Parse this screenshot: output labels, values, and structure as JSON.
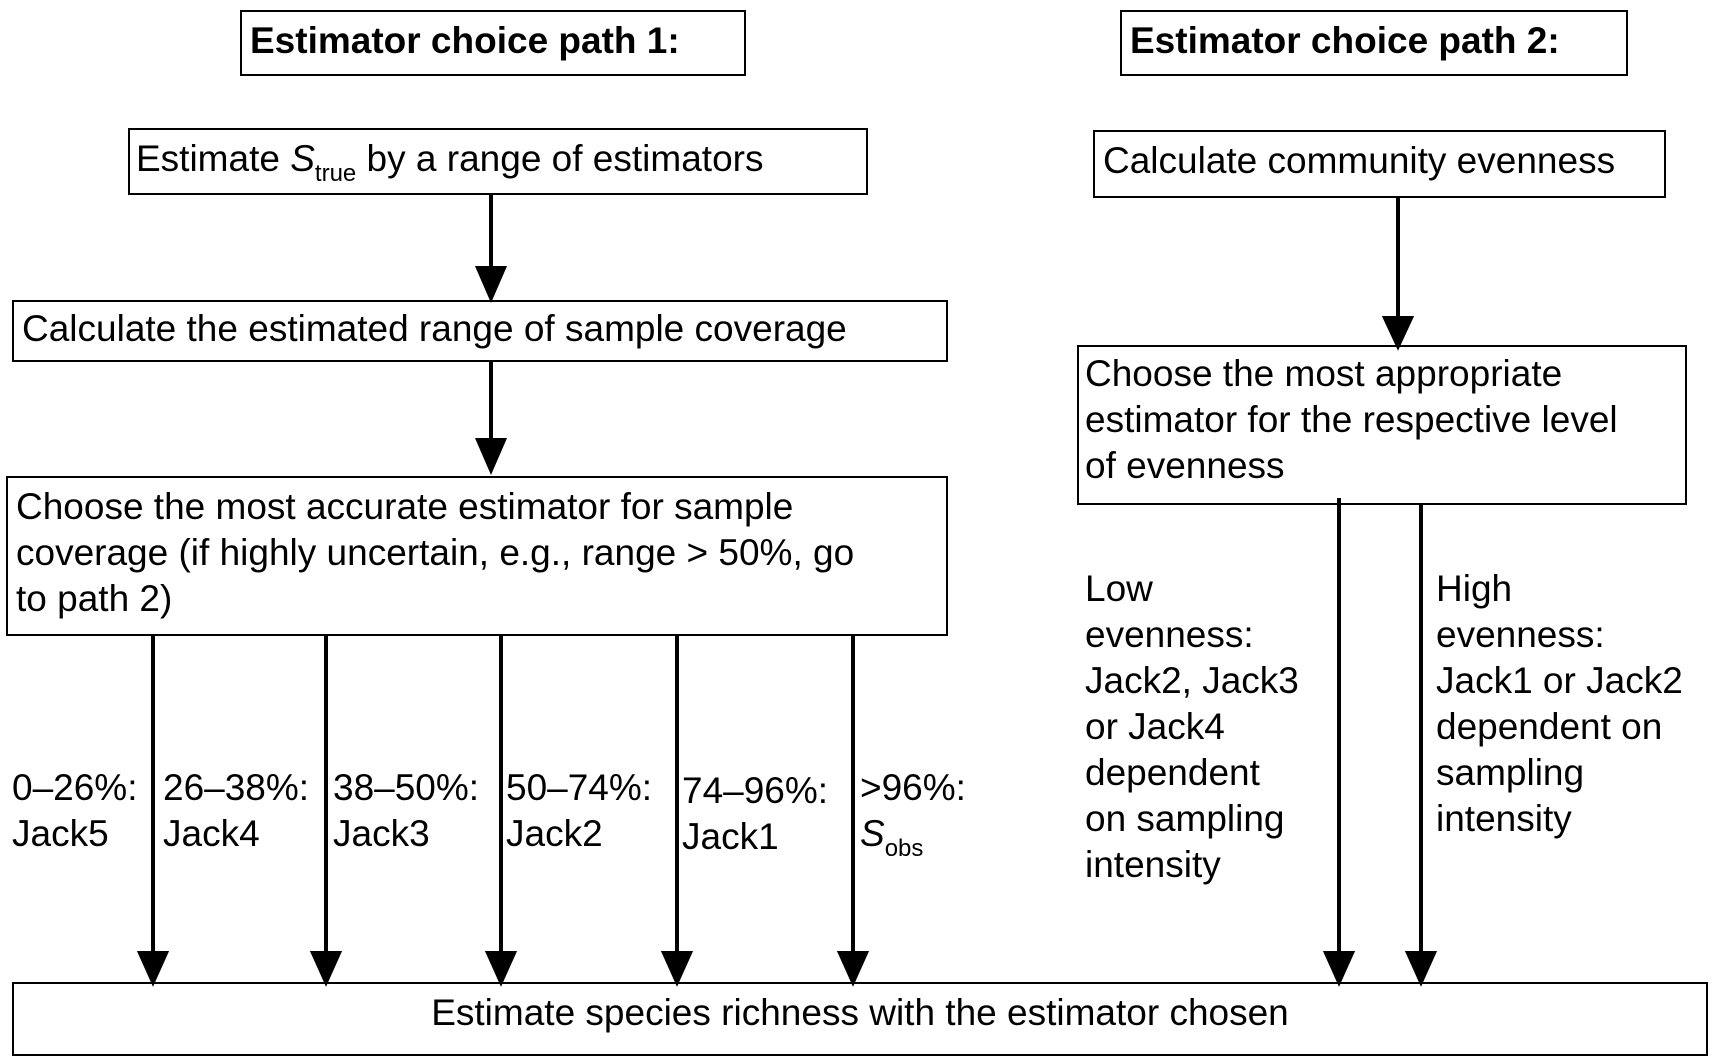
{
  "path1": {
    "title": "Estimator choice path 1:",
    "step1": {
      "prefix": "Estimate ",
      "var": "S",
      "sub": "true",
      "suffix": " by a range of estimators"
    },
    "step2": "Calculate the estimated range of sample coverage",
    "step3": "Choose the most accurate estimator for sample\ncoverage (if highly uncertain, e.g., range > 50%, go\nto path 2)",
    "branches": [
      {
        "range": "0–26%:",
        "estimator": "Jack5"
      },
      {
        "range": "26–38%:",
        "estimator": "Jack4"
      },
      {
        "range": "38–50%:",
        "estimator": "Jack3"
      },
      {
        "range": "50–74%:",
        "estimator": "Jack2"
      },
      {
        "range": "74–96%:",
        "estimator": "Jack1"
      },
      {
        "range": ">96%:",
        "var": "S",
        "sub": "obs"
      }
    ]
  },
  "path2": {
    "title": "Estimator choice path 2:",
    "step1": "Calculate community evenness",
    "step2": "Choose the most appropriate\nestimator for the respective level\nof evenness",
    "low": "Low\nevenness:\nJack2, Jack3\nor Jack4\ndependent\non sampling\nintensity",
    "high": "High\nevenness:\nJack1 or Jack2\ndependent on\nsampling\nintensity"
  },
  "final": "Estimate species richness with the estimator chosen"
}
